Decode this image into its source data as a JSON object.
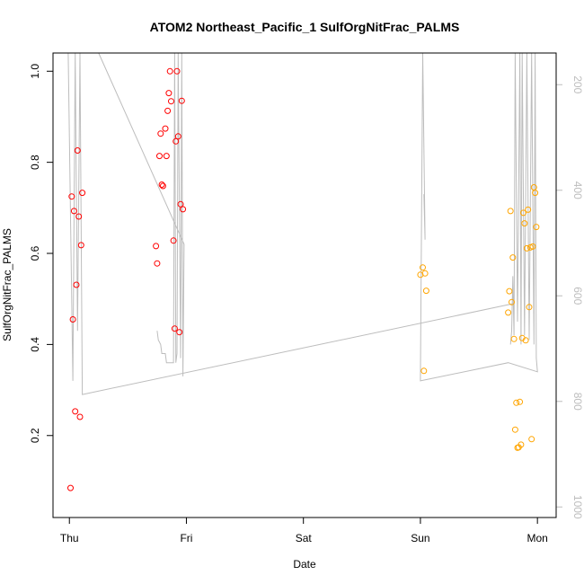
{
  "chart_data": {
    "type": "scatter",
    "title": "ATOM2 Northeast_Pacific_1 SulfOrgNitFrac_PALMS",
    "xlabel": "Date",
    "ylabel": "SulfOrgNitFrac_PALMS",
    "x_unit": "days",
    "x_ticks": [
      {
        "value": 0,
        "label": "Thu"
      },
      {
        "value": 1,
        "label": "Fri"
      },
      {
        "value": 2,
        "label": "Sat"
      },
      {
        "value": 3,
        "label": "Sun"
      },
      {
        "value": 4,
        "label": "Mon"
      }
    ],
    "xlim": [
      -0.14,
      4.16
    ],
    "ylim": [
      0.02,
      1.04
    ],
    "y_ticks": [
      0.2,
      0.4,
      0.6,
      0.8,
      1.0
    ],
    "y_tick_labels": [
      "0.2",
      "0.4",
      "0.6",
      "0.8",
      "1.0"
    ],
    "y2_ticks": [
      200,
      400,
      600,
      800,
      1000
    ],
    "y2_tick_labels": [
      "200",
      "400",
      "600",
      "800",
      "1000"
    ],
    "y2lim": [
      1020,
      140
    ],
    "y2_reversed": true,
    "grid": false,
    "colors": {
      "series_red": "#ff0000",
      "series_orange": "#ffa500",
      "altitude_trace": "#bdbdbd",
      "axis": "#000000"
    },
    "series": [
      {
        "color": "#ff0000",
        "points": [
          [
            0.01,
            0.085
          ],
          [
            0.02,
            0.725
          ],
          [
            0.03,
            0.455
          ],
          [
            0.04,
            0.693
          ],
          [
            0.05,
            0.253
          ],
          [
            0.06,
            0.531
          ],
          [
            0.07,
            0.826
          ],
          [
            0.08,
            0.681
          ],
          [
            0.09,
            0.241
          ],
          [
            0.1,
            0.618
          ],
          [
            0.11,
            0.733
          ],
          [
            0.74,
            0.616
          ],
          [
            0.75,
            0.578
          ],
          [
            0.77,
            0.814
          ],
          [
            0.78,
            0.863
          ],
          [
            0.79,
            0.751
          ],
          [
            0.8,
            0.748
          ],
          [
            0.82,
            0.874
          ],
          [
            0.83,
            0.814
          ],
          [
            0.84,
            0.913
          ],
          [
            0.85,
            0.952
          ],
          [
            0.86,
            1.0
          ],
          [
            0.87,
            0.934
          ],
          [
            0.89,
            0.628
          ],
          [
            0.9,
            0.435
          ],
          [
            0.91,
            0.846
          ],
          [
            0.92,
            1.0
          ],
          [
            0.93,
            0.857
          ],
          [
            0.94,
            0.427
          ],
          [
            0.95,
            0.708
          ],
          [
            0.96,
            0.935
          ],
          [
            0.97,
            0.697
          ]
        ]
      },
      {
        "color": "#ffa500",
        "points": [
          [
            3.0,
            0.553
          ],
          [
            3.02,
            0.569
          ],
          [
            3.03,
            0.342
          ],
          [
            3.04,
            0.556
          ],
          [
            3.05,
            0.518
          ],
          [
            3.75,
            0.47
          ],
          [
            3.76,
            0.517
          ],
          [
            3.77,
            0.693
          ],
          [
            3.78,
            0.493
          ],
          [
            3.79,
            0.591
          ],
          [
            3.8,
            0.412
          ],
          [
            3.81,
            0.213
          ],
          [
            3.82,
            0.272
          ],
          [
            3.83,
            0.173
          ],
          [
            3.84,
            0.174
          ],
          [
            3.85,
            0.274
          ],
          [
            3.86,
            0.18
          ],
          [
            3.87,
            0.414
          ],
          [
            3.88,
            0.689
          ],
          [
            3.89,
            0.666
          ],
          [
            3.9,
            0.409
          ],
          [
            3.91,
            0.611
          ],
          [
            3.92,
            0.696
          ],
          [
            3.93,
            0.482
          ],
          [
            3.94,
            0.613
          ],
          [
            3.95,
            0.192
          ],
          [
            3.96,
            0.615
          ],
          [
            3.97,
            0.745
          ],
          [
            3.98,
            0.733
          ],
          [
            3.99,
            0.658
          ]
        ]
      }
    ],
    "altitude_trace": {
      "color": "#bdbdbd",
      "axis": "right",
      "segments": [
        [
          [
            -0.01,
            1.04
          ],
          [
            0.03,
            0.32
          ],
          [
            0.05,
            1.04
          ],
          [
            0.07,
            0.43
          ],
          [
            0.09,
            1.04
          ],
          [
            0.11,
            0.29
          ],
          [
            3.8,
            0.49
          ]
        ],
        [
          [
            0.25,
            1.04
          ],
          [
            0.98,
            0.62
          ],
          [
            0.97,
            0.33
          ],
          [
            0.96,
            1.04
          ],
          [
            0.95,
            0.37
          ],
          [
            0.93,
            1.04
          ],
          [
            0.92,
            0.38
          ],
          [
            0.91,
            0.36
          ],
          [
            0.9,
            1.04
          ],
          [
            0.89,
            0.36
          ],
          [
            0.83,
            0.36
          ],
          [
            0.82,
            0.38
          ],
          [
            0.79,
            0.38
          ],
          [
            0.78,
            0.4
          ],
          [
            0.76,
            0.41
          ],
          [
            0.75,
            0.43
          ]
        ],
        [
          [
            3.03,
            0.73
          ],
          [
            3.04,
            0.63
          ],
          [
            3.02,
            1.04
          ],
          [
            3.0,
            0.32
          ],
          [
            3.75,
            0.36
          ],
          [
            4.0,
            0.34
          ],
          [
            3.99,
            0.37
          ],
          [
            3.98,
            1.04
          ],
          [
            3.97,
            0.4
          ],
          [
            3.95,
            1.04
          ],
          [
            3.93,
            0.41
          ],
          [
            3.91,
            1.04
          ],
          [
            3.89,
            0.42
          ],
          [
            3.87,
            1.04
          ],
          [
            3.86,
            0.4
          ],
          [
            3.85,
            1.04
          ],
          [
            3.83,
            0.45
          ],
          [
            3.81,
            1.04
          ],
          [
            3.8,
            0.42
          ],
          [
            3.79,
            0.55
          ],
          [
            3.78,
            0.43
          ],
          [
            3.77,
            0.4
          ]
        ]
      ]
    }
  }
}
